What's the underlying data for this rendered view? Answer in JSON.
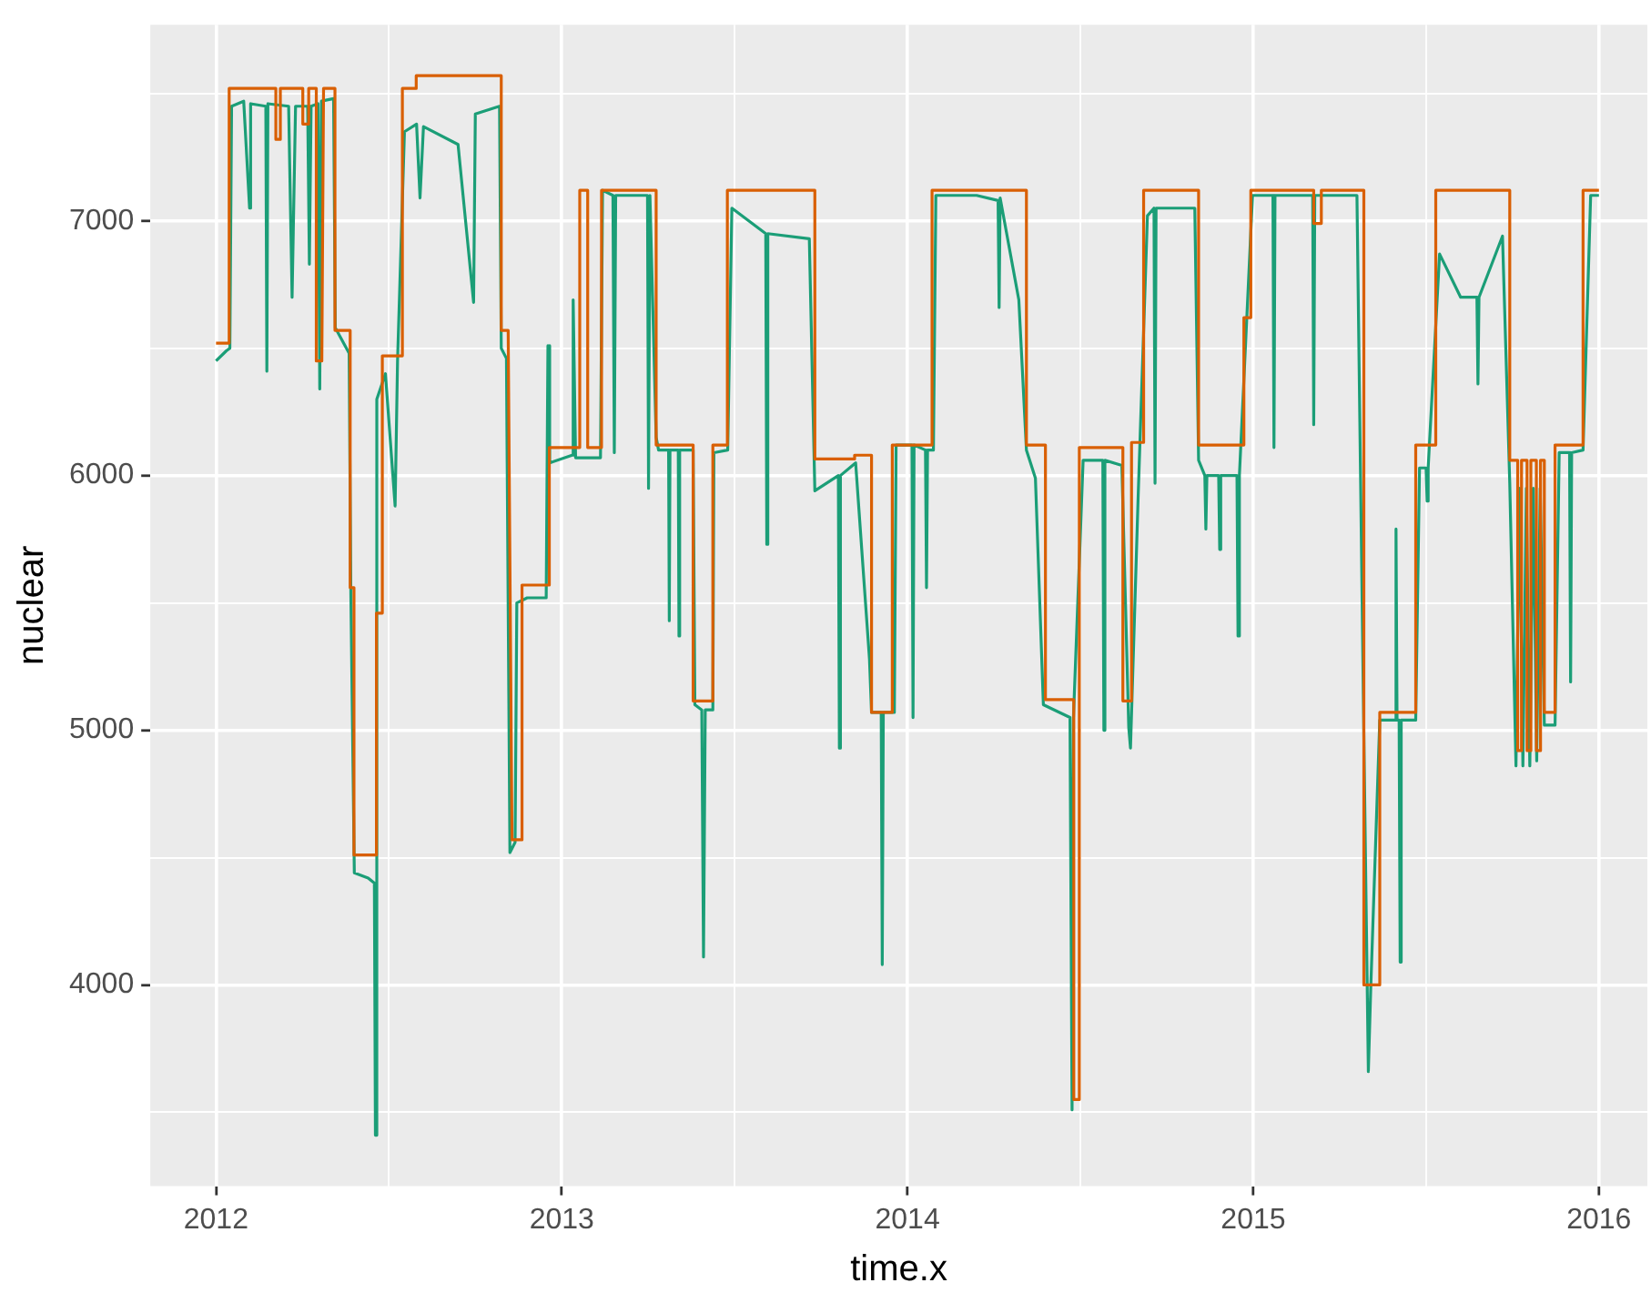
{
  "chart_data": {
    "type": "line",
    "xlabel": "time.x",
    "ylabel": "nuclear",
    "grid": true,
    "legend": false,
    "marker": "none",
    "line_style": "solid",
    "xlim": [
      2011.81,
      2016.14
    ],
    "xticks": [
      2012,
      {
        "value": 2012.5,
        "label": null
      },
      2013,
      {
        "value": 2013.5,
        "label": null
      },
      2014,
      {
        "value": 2014.5,
        "label": null
      },
      2015,
      {
        "value": 2015.5,
        "label": null
      },
      2016
    ],
    "ylim": [
      3210,
      7770
    ],
    "yticks": [
      {
        "value": 3500,
        "label": null
      },
      4000,
      {
        "value": 4500,
        "label": null
      },
      5000,
      {
        "value": 5500,
        "label": null
      },
      6000,
      {
        "value": 6500,
        "label": null
      },
      7000,
      {
        "value": 7500,
        "label": null
      }
    ],
    "series": [
      {
        "color": "#1b9e77",
        "x": [
          2012.0,
          2012.03,
          2012.04,
          2012.045,
          2012.08,
          2012.097,
          2012.1,
          2012.144,
          2012.147,
          2012.15,
          2012.21,
          2012.22,
          2012.23,
          2012.265,
          2012.27,
          2012.275,
          2012.295,
          2012.3,
          2012.305,
          2012.34,
          2012.345,
          2012.385,
          2012.39,
          2012.4,
          2012.44,
          2012.458,
          2012.461,
          2012.465,
          2012.49,
          2012.518,
          2012.525,
          2012.545,
          2012.58,
          2012.59,
          2012.6,
          2012.7,
          2012.745,
          2012.75,
          2012.82,
          2012.825,
          2012.84,
          2012.85,
          2012.865,
          2012.87,
          2012.9,
          2012.955,
          2012.96,
          2012.965,
          2013.03,
          2013.033,
          2013.04,
          2013.112,
          2013.118,
          2013.148,
          2013.152,
          2013.156,
          2013.248,
          2013.251,
          2013.255,
          2013.273,
          2013.28,
          2013.309,
          2013.311,
          2013.313,
          2013.337,
          2013.339,
          2013.341,
          2013.38,
          2013.385,
          2013.405,
          2013.41,
          2013.415,
          2013.437,
          2013.44,
          2013.48,
          2013.492,
          2013.59,
          2013.593,
          2013.596,
          2013.716,
          2013.732,
          2013.8,
          2013.803,
          2013.806,
          2013.85,
          2013.89,
          2013.896,
          2013.924,
          2013.927,
          2013.93,
          2013.962,
          2013.967,
          2014.013,
          2014.016,
          2014.019,
          2014.052,
          2014.055,
          2014.058,
          2014.075,
          2014.082,
          2014.2,
          2014.262,
          2014.265,
          2014.268,
          2014.322,
          2014.344,
          2014.37,
          2014.393,
          2014.47,
          2014.476,
          2014.48,
          2014.508,
          2014.565,
          2014.568,
          2014.571,
          2014.62,
          2014.64,
          2014.645,
          2014.667,
          2014.694,
          2014.713,
          2014.716,
          2014.719,
          2014.831,
          2014.842,
          2014.86,
          2014.863,
          2014.866,
          2014.9,
          2014.903,
          2014.906,
          2014.953,
          2014.956,
          2014.96,
          2014.998,
          2015.057,
          2015.06,
          2015.063,
          2015.172,
          2015.175,
          2015.178,
          2015.3,
          2015.32,
          2015.333,
          2015.34,
          2015.366,
          2015.41,
          2015.413,
          2015.416,
          2015.422,
          2015.425,
          2015.428,
          2015.47,
          2015.481,
          2015.5,
          2015.503,
          2015.506,
          2015.539,
          2015.6,
          2015.647,
          2015.65,
          2015.653,
          2015.721,
          2015.742,
          2015.76,
          2015.77,
          2015.78,
          2015.79,
          2015.8,
          2015.81,
          2015.82,
          2015.83,
          2015.842,
          2015.873,
          2015.885,
          2015.915,
          2015.918,
          2015.921,
          2015.954,
          2015.976,
          2016.0
        ],
        "values": [
          6450,
          6490,
          6500,
          7450,
          7470,
          7050,
          7460,
          7450,
          6410,
          7460,
          7450,
          6700,
          7450,
          7450,
          6830,
          7450,
          7460,
          6340,
          7470,
          7480,
          6580,
          6480,
          5530,
          4440,
          4420,
          4400,
          3410,
          6300,
          6400,
          5880,
          6450,
          7350,
          7380,
          7090,
          7370,
          7300,
          6680,
          7420,
          7450,
          6500,
          6460,
          4520,
          4560,
          5500,
          5520,
          5520,
          6510,
          6050,
          6080,
          6690,
          6070,
          6070,
          7120,
          7100,
          6090,
          7100,
          7100,
          5950,
          7100,
          6150,
          6100,
          6100,
          5430,
          6100,
          6100,
          5370,
          6100,
          6100,
          5100,
          5080,
          4110,
          5080,
          5080,
          6090,
          6100,
          7050,
          6950,
          5730,
          6950,
          6930,
          5940,
          6000,
          4930,
          6000,
          6050,
          5280,
          5070,
          5070,
          4080,
          5070,
          5070,
          6120,
          6120,
          5050,
          6120,
          6100,
          5560,
          6100,
          6100,
          7100,
          7100,
          7080,
          6660,
          7090,
          6690,
          6100,
          5990,
          5100,
          5050,
          3510,
          5050,
          6060,
          6060,
          5000,
          6060,
          6040,
          5010,
          4930,
          5910,
          7020,
          7050,
          5970,
          7050,
          7050,
          6060,
          6000,
          5790,
          6000,
          6000,
          5710,
          6000,
          6000,
          5370,
          6000,
          7100,
          7100,
          6110,
          7100,
          7100,
          6200,
          7100,
          7100,
          4980,
          3660,
          3990,
          5040,
          5040,
          5790,
          5040,
          5040,
          4090,
          5040,
          5040,
          6030,
          6030,
          5900,
          6030,
          6870,
          6700,
          6700,
          6360,
          6700,
          6940,
          5970,
          4860,
          5950,
          4860,
          5950,
          4860,
          5950,
          4880,
          5950,
          5020,
          5020,
          6090,
          6090,
          5190,
          6090,
          6100,
          7100,
          7100
        ]
      },
      {
        "color": "#d95f02",
        "x": [
          2012.0,
          2012.038,
          2012.038,
          2012.173,
          2012.173,
          2012.186,
          2012.186,
          2012.251,
          2012.251,
          2012.268,
          2012.268,
          2012.29,
          2012.29,
          2012.306,
          2012.311,
          2012.344,
          2012.344,
          2012.388,
          2012.388,
          2012.399,
          2012.399,
          2012.464,
          2012.464,
          2012.481,
          2012.481,
          2012.539,
          2012.539,
          2012.579,
          2012.579,
          2012.825,
          2012.825,
          2012.845,
          2012.856,
          2012.885,
          2012.885,
          2012.964,
          2012.964,
          2013.052,
          2013.052,
          2013.075,
          2013.075,
          2013.115,
          2013.115,
          2013.273,
          2013.273,
          2013.38,
          2013.38,
          2013.437,
          2013.437,
          2013.479,
          2013.479,
          2013.732,
          2013.732,
          2013.847,
          2013.847,
          2013.896,
          2013.896,
          2013.956,
          2013.956,
          2014.071,
          2014.071,
          2014.344,
          2014.344,
          2014.399,
          2014.399,
          2014.481,
          2014.481,
          2014.497,
          2014.497,
          2014.623,
          2014.623,
          2014.648,
          2014.648,
          2014.683,
          2014.683,
          2014.842,
          2014.842,
          2014.973,
          2014.973,
          2014.993,
          2014.993,
          2015.175,
          2015.175,
          2015.197,
          2015.197,
          2015.32,
          2015.32,
          2015.366,
          2015.366,
          2015.47,
          2015.47,
          2015.528,
          2015.528,
          2015.742,
          2015.742,
          2015.765,
          2015.765,
          2015.776,
          2015.776,
          2015.792,
          2015.792,
          2015.803,
          2015.803,
          2015.819,
          2015.819,
          2015.831,
          2015.831,
          2015.842,
          2015.842,
          2015.873,
          2015.873,
          2015.954,
          2015.954,
          2016.0
        ],
        "values": [
          6520,
          6520,
          7520,
          7520,
          7320,
          7320,
          7520,
          7520,
          7380,
          7380,
          7520,
          7520,
          6450,
          6450,
          7520,
          7520,
          6570,
          6570,
          5560,
          5560,
          4510,
          4510,
          5460,
          5460,
          6470,
          6470,
          7520,
          7520,
          7570,
          7570,
          6570,
          6570,
          4570,
          4570,
          5570,
          5570,
          6110,
          6110,
          7120,
          7120,
          6110,
          6110,
          7120,
          7120,
          6120,
          6120,
          5115,
          5115,
          6120,
          6120,
          7120,
          7120,
          6065,
          6065,
          6080,
          6080,
          5070,
          5070,
          6120,
          6120,
          7120,
          7120,
          6120,
          6120,
          5120,
          5120,
          3550,
          3550,
          6110,
          6110,
          5115,
          5115,
          6130,
          6130,
          7120,
          7120,
          6120,
          6120,
          6620,
          6620,
          7120,
          7120,
          6990,
          6990,
          7120,
          7120,
          4000,
          4000,
          5070,
          5070,
          6120,
          6120,
          7120,
          7120,
          6060,
          6060,
          4920,
          4920,
          6060,
          6060,
          4920,
          4920,
          6060,
          6060,
          4920,
          4920,
          6060,
          6060,
          5070,
          5070,
          6120,
          6120,
          7120,
          7120
        ]
      }
    ]
  }
}
